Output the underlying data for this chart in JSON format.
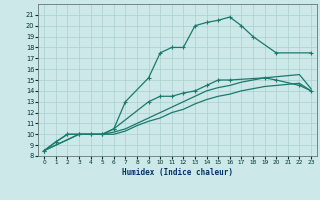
{
  "title": "",
  "xlabel": "Humidex (Indice chaleur)",
  "bg_color": "#cce8e8",
  "grid_color": "#aacfcf",
  "line_color": "#1a7a6e",
  "xlim": [
    -0.5,
    23.5
  ],
  "ylim": [
    8,
    22
  ],
  "xticks": [
    0,
    1,
    2,
    3,
    4,
    5,
    6,
    7,
    8,
    9,
    10,
    11,
    12,
    13,
    14,
    15,
    16,
    17,
    18,
    19,
    20,
    21,
    22,
    23
  ],
  "yticks": [
    8,
    9,
    10,
    11,
    12,
    13,
    14,
    15,
    16,
    17,
    18,
    19,
    20,
    21
  ],
  "series": [
    {
      "x": [
        0,
        1,
        2,
        3,
        4,
        5,
        6,
        7,
        9,
        10,
        11,
        12,
        13,
        14,
        15,
        16,
        17,
        18,
        20,
        23
      ],
      "y": [
        8.5,
        9.3,
        10,
        10,
        10,
        10,
        10.5,
        13,
        15.2,
        17.5,
        18,
        18,
        20,
        20.3,
        20.5,
        20.8,
        20,
        19,
        17.5,
        17.5
      ],
      "marker": "+",
      "markersize": 3,
      "linewidth": 0.9
    },
    {
      "x": [
        0,
        1,
        2,
        3,
        4,
        5,
        6,
        9,
        10,
        11,
        12,
        13,
        14,
        15,
        16,
        19,
        20,
        22,
        23
      ],
      "y": [
        8.5,
        9.3,
        10,
        10,
        10,
        10,
        10.5,
        13,
        13.5,
        13.5,
        13.8,
        14,
        14.5,
        15,
        15,
        15.2,
        15,
        14.5,
        14
      ],
      "marker": "+",
      "markersize": 3,
      "linewidth": 0.9
    },
    {
      "x": [
        0,
        2,
        3,
        4,
        5,
        6,
        7,
        8,
        9,
        10,
        11,
        12,
        13,
        14,
        15,
        16,
        17,
        18,
        19,
        20,
        21,
        22,
        23
      ],
      "y": [
        8.5,
        9.5,
        10,
        10,
        10,
        10.2,
        10.5,
        11,
        11.5,
        12,
        12.5,
        13,
        13.5,
        14,
        14.3,
        14.5,
        14.8,
        15,
        15.2,
        15.3,
        15.4,
        15.5,
        14.2
      ],
      "marker": null,
      "markersize": 0,
      "linewidth": 0.9
    },
    {
      "x": [
        0,
        2,
        3,
        4,
        5,
        6,
        7,
        8,
        9,
        10,
        11,
        12,
        13,
        14,
        15,
        16,
        17,
        18,
        19,
        20,
        21,
        22,
        23
      ],
      "y": [
        8.5,
        9.5,
        10,
        10,
        10,
        10,
        10.3,
        10.8,
        11.2,
        11.5,
        12,
        12.3,
        12.8,
        13.2,
        13.5,
        13.7,
        14,
        14.2,
        14.4,
        14.5,
        14.6,
        14.7,
        14.0
      ],
      "marker": null,
      "markersize": 0,
      "linewidth": 0.9
    }
  ]
}
